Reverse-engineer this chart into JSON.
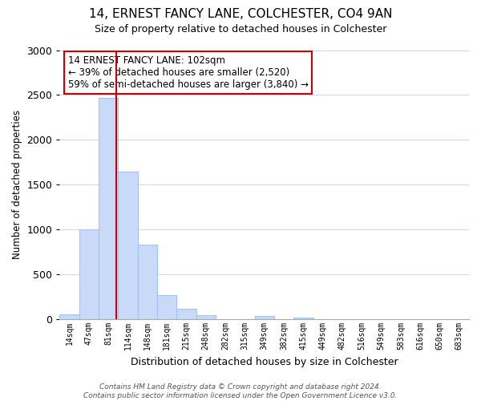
{
  "title": "14, ERNEST FANCY LANE, COLCHESTER, CO4 9AN",
  "subtitle": "Size of property relative to detached houses in Colchester",
  "xlabel": "Distribution of detached houses by size in Colchester",
  "ylabel": "Number of detached properties",
  "bar_labels": [
    "14sqm",
    "47sqm",
    "81sqm",
    "114sqm",
    "148sqm",
    "181sqm",
    "215sqm",
    "248sqm",
    "282sqm",
    "315sqm",
    "349sqm",
    "382sqm",
    "415sqm",
    "449sqm",
    "482sqm",
    "516sqm",
    "549sqm",
    "583sqm",
    "616sqm",
    "650sqm",
    "683sqm"
  ],
  "bar_values": [
    55,
    1000,
    2470,
    1650,
    830,
    270,
    120,
    50,
    0,
    0,
    35,
    0,
    15,
    0,
    0,
    0,
    0,
    0,
    0,
    0,
    0
  ],
  "bar_color": "#c9daf8",
  "bar_edge_color": "#a4c2f4",
  "vline_x": 2.4,
  "vline_color": "#cc0000",
  "annotation_text": "14 ERNEST FANCY LANE: 102sqm\n← 39% of detached houses are smaller (2,520)\n59% of semi-detached houses are larger (3,840) →",
  "annotation_box_color": "white",
  "annotation_box_edgecolor": "#cc0000",
  "ylim": [
    0,
    3000
  ],
  "yticks": [
    0,
    500,
    1000,
    1500,
    2000,
    2500,
    3000
  ],
  "footer_text": "Contains HM Land Registry data © Crown copyright and database right 2024.\nContains public sector information licensed under the Open Government Licence v3.0.",
  "background_color": "#ffffff",
  "grid_color": "#c8d8e8"
}
